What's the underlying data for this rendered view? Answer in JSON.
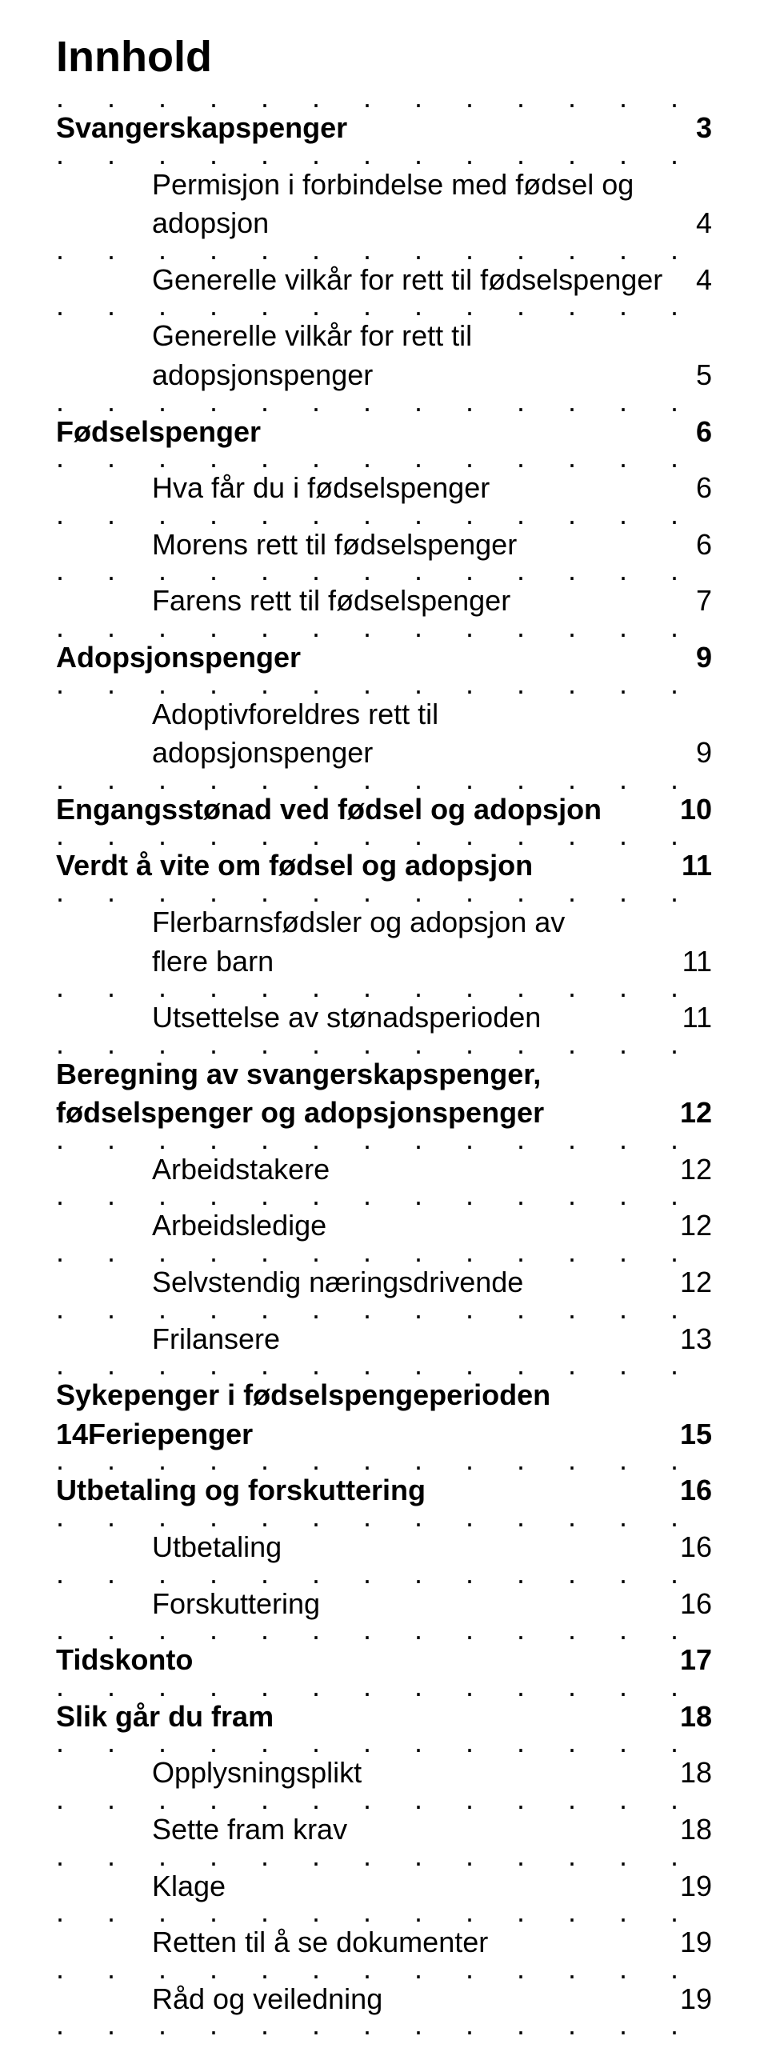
{
  "title": "Innhold",
  "dots": ". . . . . . . . . . . . . . . . . . . . . . . . . .",
  "entries": [
    {
      "level": 0,
      "label": "Svangerskapspenger",
      "page": "3",
      "lines": 1
    },
    {
      "level": 1,
      "label": "Permisjon i forbindelse med fødsel og adopsjon",
      "page": "4",
      "lines": 2
    },
    {
      "level": 1,
      "label": "Generelle vilkår for rett til fødselspenger",
      "page": "4",
      "lines": 1
    },
    {
      "level": 1,
      "label": "Generelle vilkår for rett til adopsjonspenger",
      "page": "5",
      "lines": 2
    },
    {
      "level": 0,
      "label": "Fødselspenger",
      "page": "6",
      "lines": 1
    },
    {
      "level": 1,
      "label": "Hva får du i fødselspenger",
      "page": "6",
      "lines": 1
    },
    {
      "level": 1,
      "label": "Morens rett til fødselspenger",
      "page": "6",
      "lines": 1
    },
    {
      "level": 1,
      "label": "Farens rett til fødselspenger",
      "page": "7",
      "lines": 1
    },
    {
      "level": 0,
      "label": "Adopsjonspenger",
      "page": "9",
      "lines": 1
    },
    {
      "level": 1,
      "label": "Adoptivforeldres rett til adopsjonspenger",
      "page": "9",
      "lines": 2
    },
    {
      "level": 0,
      "label": "Engangsstønad ved fødsel og adopsjon",
      "page": "10",
      "lines": 1
    },
    {
      "level": 0,
      "label": "Verdt å vite om fødsel og adopsjon",
      "page": "11",
      "lines": 1
    },
    {
      "level": 1,
      "label": "Flerbarnsfødsler og adopsjon av flere barn",
      "page": "11",
      "lines": 2
    },
    {
      "level": 1,
      "label": "Utsettelse av stønadsperioden",
      "page": "11",
      "lines": 1
    },
    {
      "level": 0,
      "label": "Beregning av svangerskapspenger, fødselspenger og adopsjonspenger",
      "page": "12",
      "lines": 2
    },
    {
      "level": 1,
      "label": "Arbeidstakere",
      "page": "12",
      "lines": 1
    },
    {
      "level": 1,
      "label": "Arbeidsledige",
      "page": "12",
      "lines": 1
    },
    {
      "level": 1,
      "label": "Selvstendig næringsdrivende",
      "page": "12",
      "lines": 1
    },
    {
      "level": 1,
      "label": "Frilansere",
      "page": "13",
      "lines": 1
    },
    {
      "level": 0,
      "label": "Sykepenger i fødselspengeperioden 14",
      "page": "",
      "lines": 1,
      "special": "syke"
    },
    {
      "level": 0,
      "label": "Feriepenger",
      "page": "15",
      "lines": 1,
      "special": "ferie"
    },
    {
      "level": 0,
      "label": "Utbetaling og forskuttering",
      "page": "16",
      "lines": 1
    },
    {
      "level": 1,
      "label": "Utbetaling",
      "page": "16",
      "lines": 1
    },
    {
      "level": 1,
      "label": "Forskuttering",
      "page": "16",
      "lines": 1
    },
    {
      "level": 0,
      "label": "Tidskonto",
      "page": "17",
      "lines": 1
    },
    {
      "level": 0,
      "label": "Slik går du fram",
      "page": "18",
      "lines": 1
    },
    {
      "level": 1,
      "label": "Opplysningsplikt",
      "page": "18",
      "lines": 1
    },
    {
      "level": 1,
      "label": "Sette fram krav",
      "page": "18",
      "lines": 1
    },
    {
      "level": 1,
      "label": "Klage",
      "page": "19",
      "lines": 1
    },
    {
      "level": 1,
      "label": "Retten til å se dokumenter",
      "page": "19",
      "lines": 1
    },
    {
      "level": 1,
      "label": "Råd og veiledning",
      "page": "19",
      "lines": 1
    }
  ],
  "combined": {
    "prefix": "14",
    "label": "Feriepenger",
    "page": "15"
  },
  "syke_line1": "Sykepenger i fødselspengeperioden"
}
